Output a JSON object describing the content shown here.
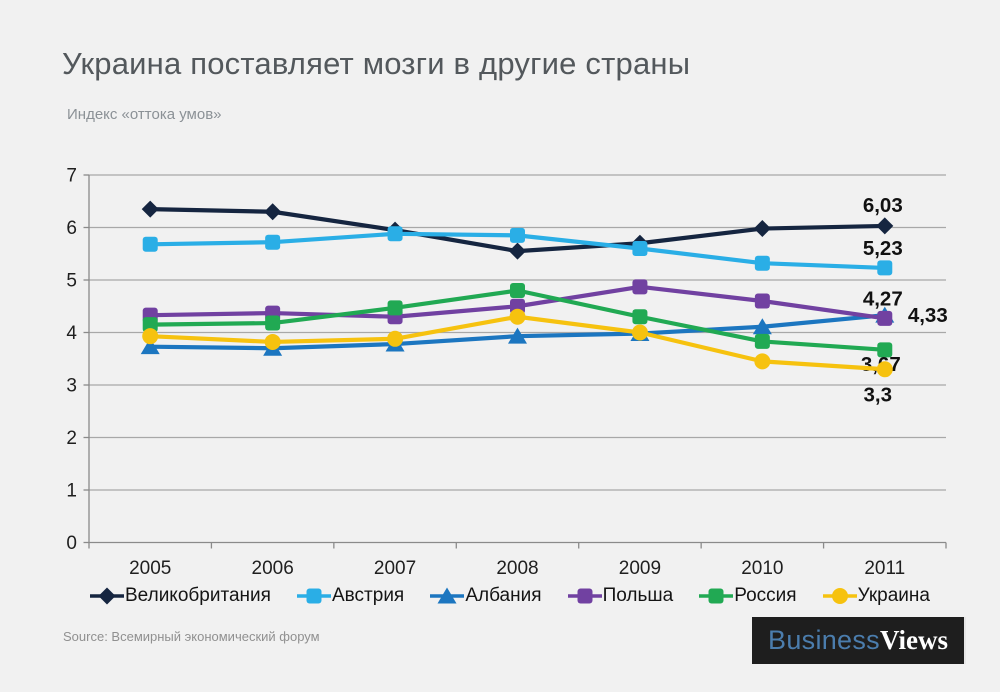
{
  "title": "Украина поставляет мозги в другие страны",
  "subtitle": "Индекс «оттока умов»",
  "source": "Source: Всемирный экономический форум",
  "logo": {
    "part1": "Business",
    "part2": "Views"
  },
  "colors": {
    "background": "#f1f1f1",
    "grid": "#a8a8a8",
    "axis": "#8a8a8a",
    "tick_label": "#1f1f1f",
    "end_label": "#111111",
    "title": "#53585c",
    "subtitle": "#8b9196"
  },
  "chart_data": {
    "type": "line",
    "x": [
      "2005",
      "2006",
      "2007",
      "2008",
      "2009",
      "2010",
      "2011"
    ],
    "ylim": [
      0,
      7
    ],
    "yticks": [
      0,
      1,
      2,
      3,
      4,
      5,
      6,
      7
    ],
    "grid": true,
    "legend_position": "bottom",
    "title": "Украина поставляет мозги в другие страны",
    "ylabel": "Индекс «оттока умов»",
    "series": [
      {
        "name": "Великобритания",
        "key": "uk",
        "color": "#152540",
        "marker": "diamond",
        "values": [
          6.35,
          6.3,
          5.95,
          5.55,
          5.7,
          5.98,
          6.03
        ],
        "end_label": "6,03",
        "label_dx": -2,
        "label_dy": -14
      },
      {
        "name": "Австрия",
        "key": "austria",
        "color": "#2aaee6",
        "marker": "square",
        "values": [
          5.68,
          5.72,
          5.88,
          5.85,
          5.6,
          5.32,
          5.23
        ],
        "end_label": "5,23",
        "label_dx": -2,
        "label_dy": -13
      },
      {
        "name": "Албания",
        "key": "albania",
        "color": "#1c76c0",
        "marker": "triangle",
        "values": [
          3.73,
          3.7,
          3.78,
          3.93,
          3.98,
          4.11,
          4.33
        ],
        "end_label": "4,33",
        "label_dx": 43,
        "label_dy": 7
      },
      {
        "name": "Польша",
        "key": "poland",
        "color": "#7141a1",
        "marker": "square",
        "values": [
          4.33,
          4.37,
          4.3,
          4.5,
          4.87,
          4.6,
          4.27
        ],
        "end_label": "4,27",
        "label_dx": -2,
        "label_dy": -13
      },
      {
        "name": "Россия",
        "key": "russia",
        "color": "#21a953",
        "marker": "square",
        "values": [
          4.15,
          4.18,
          4.47,
          4.8,
          4.3,
          3.83,
          3.67
        ],
        "end_label": "3,67",
        "label_dx": -4,
        "label_dy": 21
      },
      {
        "name": "Украина",
        "key": "ukraine",
        "color": "#f6c20f",
        "marker": "circle",
        "values": [
          3.93,
          3.82,
          3.88,
          4.3,
          4.0,
          3.45,
          3.3
        ],
        "end_label": "3,3",
        "label_dx": -7,
        "label_dy": 32
      }
    ]
  }
}
